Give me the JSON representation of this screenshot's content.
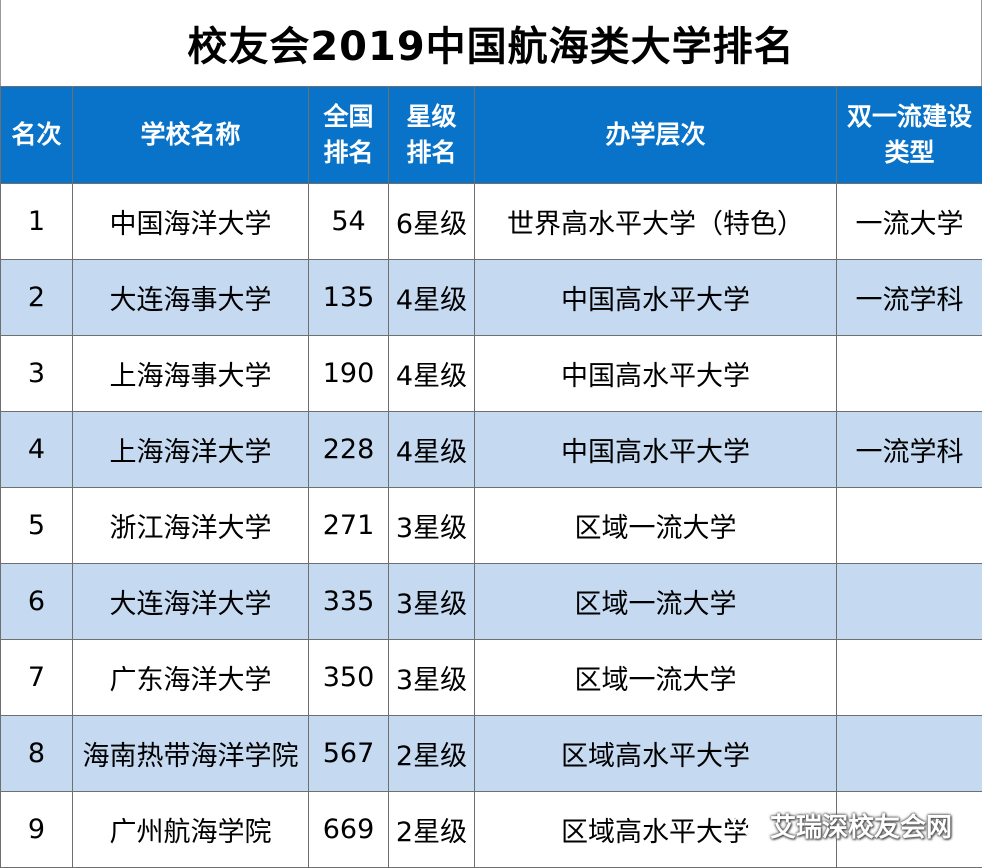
{
  "title": "校友会2019中国航海类大学排名",
  "headers": {
    "rank": "名次",
    "school": "学校名称",
    "national_line1": "全国",
    "national_line2": "排名",
    "star_line1": "星级",
    "star_line2": "排名",
    "level": "办学层次",
    "dfc_line1": "双一流建设",
    "dfc_line2": "类型"
  },
  "rows": [
    {
      "rank": "1",
      "school": "中国海洋大学",
      "national": "54",
      "star": "6星级",
      "level": "世界高水平大学（特色）",
      "dfc": "一流大学"
    },
    {
      "rank": "2",
      "school": "大连海事大学",
      "national": "135",
      "star": "4星级",
      "level": "中国高水平大学",
      "dfc": "一流学科"
    },
    {
      "rank": "3",
      "school": "上海海事大学",
      "national": "190",
      "star": "4星级",
      "level": "中国高水平大学",
      "dfc": ""
    },
    {
      "rank": "4",
      "school": "上海海洋大学",
      "national": "228",
      "star": "4星级",
      "level": "中国高水平大学",
      "dfc": "一流学科"
    },
    {
      "rank": "5",
      "school": "浙江海洋大学",
      "national": "271",
      "star": "3星级",
      "level": "区域一流大学",
      "dfc": ""
    },
    {
      "rank": "6",
      "school": "大连海洋大学",
      "national": "335",
      "star": "3星级",
      "level": "区域一流大学",
      "dfc": ""
    },
    {
      "rank": "7",
      "school": "广东海洋大学",
      "national": "350",
      "star": "3星级",
      "level": "区域一流大学",
      "dfc": ""
    },
    {
      "rank": "8",
      "school": "海南热带海洋学院",
      "national": "567",
      "star": "2星级",
      "level": "区域高水平大学",
      "dfc": ""
    },
    {
      "rank": "9",
      "school": "广州航海学院",
      "national": "669",
      "star": "2星级",
      "level": "区域高水平大学",
      "dfc": ""
    }
  ],
  "watermark": "艾瑞深校友会网",
  "colors": {
    "header_bg": "#0873c8",
    "alt_row": "#c5d9f1"
  }
}
